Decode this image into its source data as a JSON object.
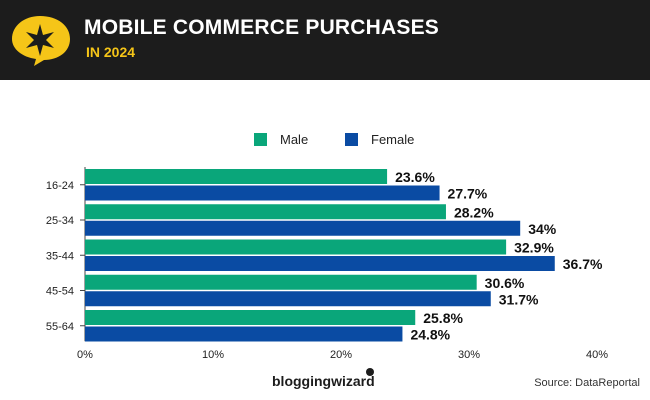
{
  "header": {
    "title": "MOBILE COMMERCE PURCHASES",
    "subtitle": "IN 2024",
    "logo_icon": "star-burst-icon",
    "background": "#1c1c1c",
    "accent": "#f5c518"
  },
  "chart_data": {
    "type": "bar",
    "orientation": "horizontal",
    "categories": [
      "16-24",
      "25-34",
      "35-44",
      "45-54",
      "55-64"
    ],
    "series": [
      {
        "name": "Male",
        "color": "#0aa67a",
        "values": [
          23.6,
          28.2,
          32.9,
          30.6,
          25.8
        ],
        "labels": [
          "23.6%",
          "28.2%",
          "32.9%",
          "30.6%",
          "25.8%"
        ]
      },
      {
        "name": "Female",
        "color": "#0a4ba3",
        "values": [
          27.7,
          34,
          36.7,
          31.7,
          24.8
        ],
        "labels": [
          "27.7%",
          "34%",
          "36.7%",
          "31.7%",
          "24.8%"
        ]
      }
    ],
    "xlim": [
      0,
      40
    ],
    "xticks": [
      0,
      10,
      20,
      30,
      40
    ],
    "xtick_labels": [
      "0%",
      "10%",
      "20%",
      "30%",
      "40%"
    ],
    "legend_position": "top-center",
    "grid": false
  },
  "footer": {
    "brand": "bloggingwizard",
    "source": "Source: DataReportal"
  }
}
